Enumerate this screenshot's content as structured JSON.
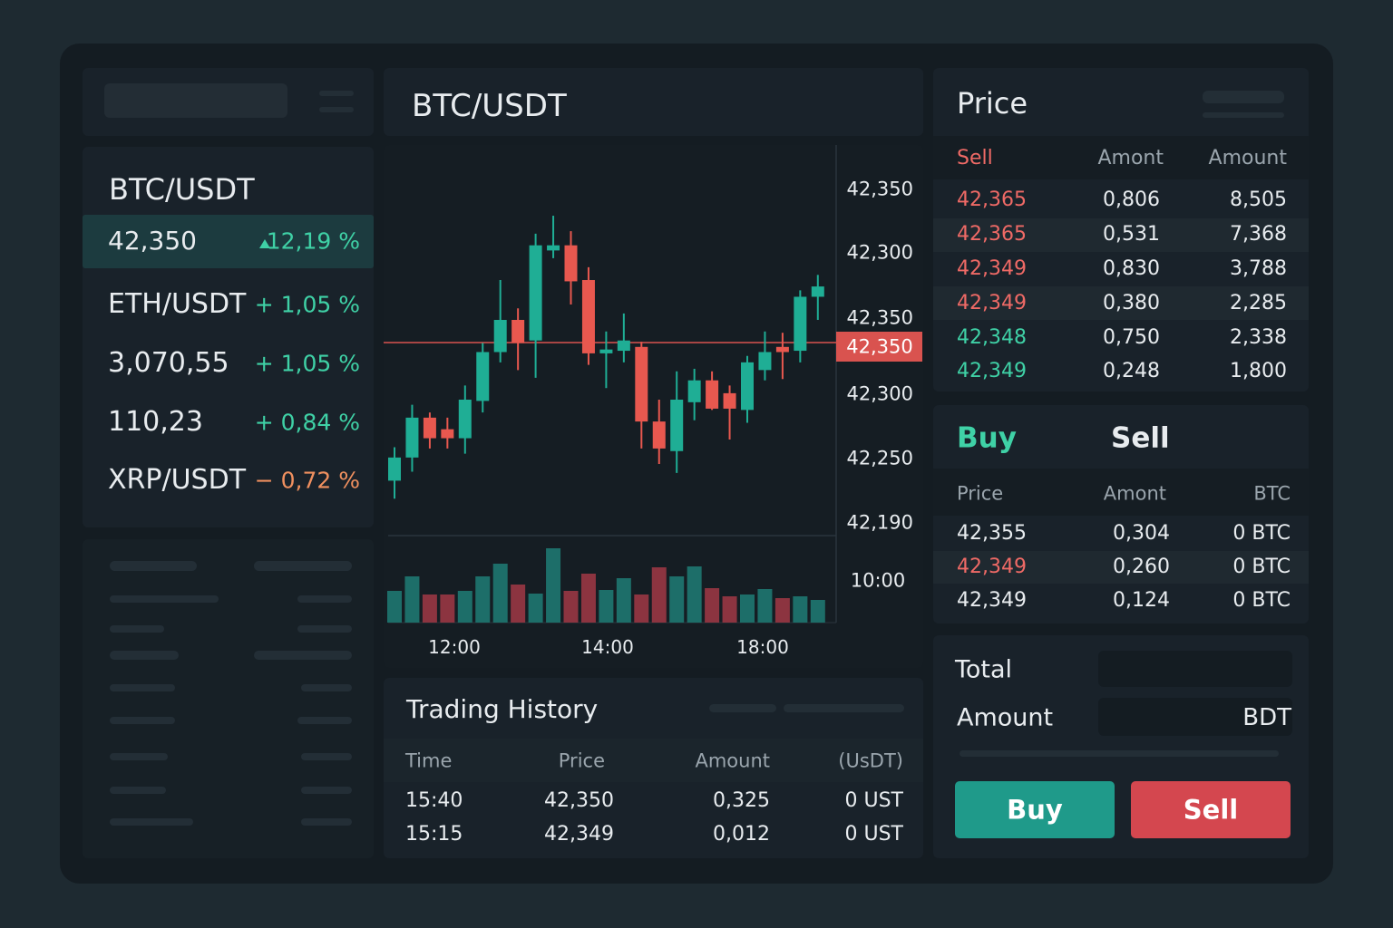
{
  "sidebar": {
    "title": "BTC/USDT",
    "markets": [
      {
        "label": "42,350",
        "change": "12,19 %",
        "color": "#3fd1a6"
      },
      {
        "label": "ETH/USDT",
        "change": "+ 1,05 %",
        "color": "#3fd1a6"
      },
      {
        "label": "3,070,55",
        "change": "+ 1,05 %",
        "color": "#3fd1a6"
      },
      {
        "label": "110,23",
        "change": "+ 0,84 %",
        "color": "#3fd1a6"
      },
      {
        "label": "XRP/USDT",
        "change": "− 0,72 %",
        "color": "#f0905f"
      }
    ]
  },
  "chart": {
    "title": "BTC/USDT",
    "price_labels": [
      "42,350",
      "42,300",
      "42,350",
      "42,300",
      "42,250",
      "42,190"
    ],
    "last_price": "42,350",
    "volume_label": "10:00",
    "time_labels": [
      "12:00",
      "14:00",
      "18:00"
    ],
    "ylim": [
      42191,
      42494
    ],
    "up_color": "#1fae95",
    "down_color": "#e8584f",
    "candles": {
      "open": [
        42233,
        42251,
        42282,
        42273,
        42266,
        42295,
        42333,
        42358,
        42342,
        42412,
        42416,
        42389,
        42332,
        42334,
        42337,
        42279,
        42256,
        42294,
        42311,
        42301,
        42288,
        42319,
        42337,
        42334,
        42376
      ],
      "high": [
        42259,
        42292,
        42286,
        42282,
        42307,
        42340,
        42389,
        42367,
        42425,
        42439,
        42427,
        42399,
        42349,
        42363,
        42341,
        42296,
        42318,
        42320,
        42318,
        42307,
        42330,
        42349,
        42348,
        42381,
        42393
      ],
      "low": [
        42219,
        42240,
        42258,
        42258,
        42254,
        42286,
        42325,
        42319,
        42313,
        42406,
        42370,
        42323,
        42305,
        42325,
        42258,
        42246,
        42239,
        42280,
        42288,
        42265,
        42278,
        42311,
        42312,
        42325,
        42358
      ],
      "close": [
        42251,
        42282,
        42266,
        42266,
        42296,
        42333,
        42358,
        42340,
        42416,
        42416,
        42388,
        42332,
        42335,
        42342,
        42279,
        42258,
        42296,
        42311,
        42289,
        42289,
        42325,
        42333,
        42333,
        42376,
        42384
      ]
    },
    "volumes": [
      35,
      51,
      31,
      31,
      35,
      51,
      65,
      42,
      32,
      82,
      35,
      54,
      36,
      49,
      31,
      61,
      51,
      62,
      38,
      29,
      31,
      37,
      27,
      29,
      25
    ]
  },
  "trading_history": {
    "title": "Trading History",
    "columns": [
      "Time",
      "Price",
      "Amount",
      "(UsDT)"
    ],
    "rows": [
      [
        "15:40",
        "42,350",
        "0,325",
        "0 UST"
      ],
      [
        "15:15",
        "42,349",
        "0,012",
        "0 UST"
      ]
    ]
  },
  "order_book": {
    "title": "Price",
    "columns": [
      "Sell",
      "Amont",
      "Amount"
    ],
    "rows": [
      [
        "42,365",
        "0,806",
        "8,505"
      ],
      [
        "42,365",
        "0,531",
        "7,368"
      ],
      [
        "42,349",
        "0,830",
        "3,788"
      ],
      [
        "42,349",
        "0,380",
        "2,285"
      ],
      [
        "42,348",
        "0,750",
        "2,338"
      ],
      [
        "42,349",
        "0,248",
        "1,800"
      ]
    ],
    "price_colors": [
      "#ef6a66",
      "#ef6a66",
      "#ef6a66",
      "#ef6a66",
      "#3fd1a6",
      "#3fd1a6"
    ]
  },
  "trade_panel": {
    "tabs": [
      "Buy",
      "Sell"
    ],
    "columns": [
      "Price",
      "Amont",
      "BTC"
    ],
    "rows": [
      [
        "42,355",
        "0,304",
        "0 BTC"
      ],
      [
        "42,349",
        "0,260",
        "0 BTC"
      ],
      [
        "42,349",
        "0,124",
        "0 BTC"
      ]
    ],
    "price_colors": [
      "#e8ecef",
      "#ef6a66",
      "#e8ecef"
    ]
  },
  "order_form": {
    "total_label": "Total",
    "amount_label": "Amount",
    "currency": "BDT",
    "buy": "Buy",
    "sell": "Sell"
  }
}
